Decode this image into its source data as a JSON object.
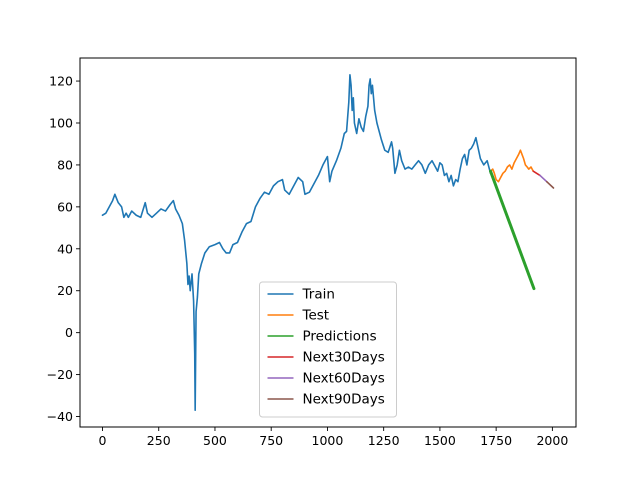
{
  "chart_data": {
    "type": "line",
    "title": "",
    "xlabel": "",
    "ylabel": "",
    "xlim": [
      -100,
      2105
    ],
    "ylim": [
      -45,
      131
    ],
    "x_ticks": [
      0,
      250,
      500,
      750,
      1000,
      1250,
      1500,
      1750,
      2000
    ],
    "y_ticks": [
      -40,
      -20,
      0,
      20,
      40,
      60,
      80,
      100,
      120
    ],
    "grid": false,
    "legend_position": "lower center",
    "series": [
      {
        "name": "Train",
        "color": "#1f77b4",
        "points": [
          [
            0,
            56
          ],
          [
            15,
            57
          ],
          [
            30,
            60
          ],
          [
            45,
            63
          ],
          [
            55,
            66
          ],
          [
            70,
            62
          ],
          [
            85,
            60
          ],
          [
            95,
            55
          ],
          [
            105,
            57
          ],
          [
            115,
            55
          ],
          [
            130,
            58
          ],
          [
            150,
            56
          ],
          [
            170,
            55
          ],
          [
            190,
            62
          ],
          [
            200,
            57
          ],
          [
            220,
            55
          ],
          [
            240,
            57
          ],
          [
            260,
            59
          ],
          [
            280,
            58
          ],
          [
            300,
            61
          ],
          [
            315,
            63
          ],
          [
            325,
            59
          ],
          [
            340,
            56
          ],
          [
            355,
            52
          ],
          [
            365,
            44
          ],
          [
            375,
            33
          ],
          [
            380,
            23
          ],
          [
            385,
            27
          ],
          [
            390,
            20
          ],
          [
            398,
            28
          ],
          [
            405,
            15
          ],
          [
            410,
            -10
          ],
          [
            412,
            -37
          ],
          [
            416,
            10
          ],
          [
            422,
            17
          ],
          [
            428,
            28
          ],
          [
            440,
            33
          ],
          [
            455,
            38
          ],
          [
            475,
            41
          ],
          [
            500,
            42
          ],
          [
            520,
            43
          ],
          [
            535,
            40
          ],
          [
            550,
            38
          ],
          [
            565,
            38
          ],
          [
            580,
            42
          ],
          [
            600,
            43
          ],
          [
            620,
            48
          ],
          [
            640,
            52
          ],
          [
            660,
            53
          ],
          [
            680,
            60
          ],
          [
            700,
            64
          ],
          [
            720,
            67
          ],
          [
            740,
            66
          ],
          [
            760,
            70
          ],
          [
            780,
            72
          ],
          [
            800,
            73
          ],
          [
            810,
            68
          ],
          [
            830,
            66
          ],
          [
            850,
            70
          ],
          [
            870,
            74
          ],
          [
            890,
            72
          ],
          [
            900,
            66
          ],
          [
            920,
            67
          ],
          [
            940,
            71
          ],
          [
            960,
            75
          ],
          [
            980,
            80
          ],
          [
            1000,
            84
          ],
          [
            1010,
            72
          ],
          [
            1020,
            77
          ],
          [
            1040,
            82
          ],
          [
            1060,
            88
          ],
          [
            1075,
            95
          ],
          [
            1085,
            96
          ],
          [
            1095,
            110
          ],
          [
            1100,
            123
          ],
          [
            1105,
            118
          ],
          [
            1110,
            106
          ],
          [
            1115,
            112
          ],
          [
            1120,
            100
          ],
          [
            1130,
            95
          ],
          [
            1140,
            102
          ],
          [
            1150,
            98
          ],
          [
            1160,
            96
          ],
          [
            1170,
            103
          ],
          [
            1180,
            108
          ],
          [
            1185,
            118
          ],
          [
            1190,
            121
          ],
          [
            1195,
            114
          ],
          [
            1200,
            118
          ],
          [
            1205,
            112
          ],
          [
            1210,
            106
          ],
          [
            1220,
            100
          ],
          [
            1230,
            96
          ],
          [
            1240,
            92
          ],
          [
            1255,
            87
          ],
          [
            1270,
            86
          ],
          [
            1285,
            91
          ],
          [
            1290,
            88
          ],
          [
            1300,
            76
          ],
          [
            1310,
            80
          ],
          [
            1320,
            87
          ],
          [
            1330,
            82
          ],
          [
            1345,
            78
          ],
          [
            1360,
            79
          ],
          [
            1375,
            78
          ],
          [
            1390,
            80
          ],
          [
            1405,
            82
          ],
          [
            1420,
            80
          ],
          [
            1435,
            76
          ],
          [
            1450,
            80
          ],
          [
            1465,
            82
          ],
          [
            1480,
            79
          ],
          [
            1490,
            77
          ],
          [
            1500,
            81
          ],
          [
            1510,
            80
          ],
          [
            1520,
            75
          ],
          [
            1530,
            76
          ],
          [
            1540,
            72
          ],
          [
            1550,
            75
          ],
          [
            1560,
            70
          ],
          [
            1570,
            73
          ],
          [
            1580,
            72
          ],
          [
            1590,
            78
          ],
          [
            1600,
            83
          ],
          [
            1610,
            85
          ],
          [
            1620,
            80
          ],
          [
            1630,
            87
          ],
          [
            1640,
            88
          ],
          [
            1650,
            90
          ],
          [
            1660,
            93
          ],
          [
            1670,
            88
          ],
          [
            1680,
            83
          ],
          [
            1695,
            80
          ],
          [
            1710,
            82
          ],
          [
            1725,
            76
          ]
        ]
      },
      {
        "name": "Test",
        "color": "#ff7f0e",
        "points": [
          [
            1725,
            77
          ],
          [
            1735,
            78
          ],
          [
            1742,
            76
          ],
          [
            1750,
            73
          ],
          [
            1760,
            72
          ],
          [
            1770,
            74
          ],
          [
            1780,
            76
          ],
          [
            1790,
            77
          ],
          [
            1800,
            79
          ],
          [
            1810,
            80
          ],
          [
            1820,
            78
          ],
          [
            1830,
            81
          ],
          [
            1840,
            83
          ],
          [
            1850,
            85
          ],
          [
            1858,
            87
          ],
          [
            1865,
            85
          ],
          [
            1872,
            83
          ],
          [
            1880,
            80
          ],
          [
            1888,
            79
          ],
          [
            1895,
            78
          ],
          [
            1905,
            79
          ],
          [
            1915,
            77
          ]
        ]
      },
      {
        "name": "Predictions",
        "color": "#2ca02c",
        "points": [
          [
            1725,
            77
          ],
          [
            1918,
            21
          ]
        ]
      },
      {
        "name": "Next30Days",
        "color": "#d62728",
        "points": [
          [
            1915,
            77
          ],
          [
            1945,
            75
          ]
        ]
      },
      {
        "name": "Next60Days",
        "color": "#9467bd",
        "points": [
          [
            1945,
            75
          ],
          [
            1975,
            72
          ]
        ]
      },
      {
        "name": "Next90Days",
        "color": "#8c564b",
        "points": [
          [
            1975,
            72
          ],
          [
            2005,
            69
          ]
        ]
      }
    ]
  }
}
